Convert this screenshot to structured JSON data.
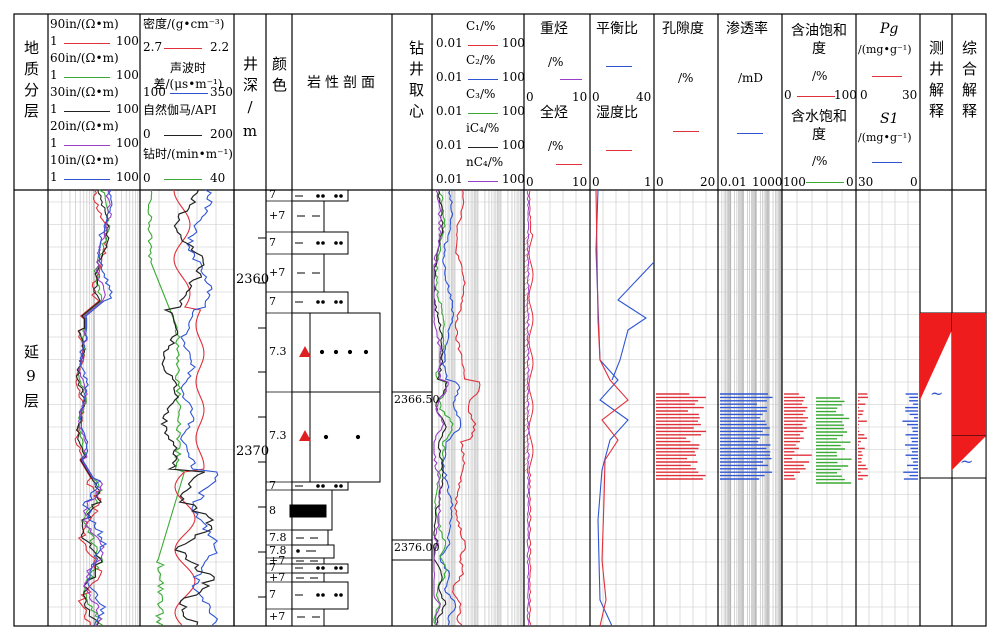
{
  "columns": {
    "geo": "地质分层",
    "depth": "井深/m",
    "color": "颜色",
    "lith": "岩性剖面",
    "core": "钻井取心",
    "heavy": "重烃",
    "balance": "平衡比",
    "porosity": "孔隙度",
    "perm": "渗透率",
    "oilsat": "含油饱和度",
    "watsat": "含水饱和度",
    "logint": "测井解释",
    "compint": "综合解释"
  },
  "resistivity_tracks": [
    {
      "name": "90in/(Ω•m)",
      "min": "1",
      "max": "100",
      "color": "#e0303a"
    },
    {
      "name": "60in/(Ω•m)",
      "min": "1",
      "max": "100",
      "color": "#3aaa35"
    },
    {
      "name": "30in/(Ω•m)",
      "min": "1",
      "max": "100",
      "color": "#222222"
    },
    {
      "name": "20in/(Ω•m)",
      "min": "1",
      "max": "100",
      "color": "#9b3fc9"
    },
    {
      "name": "10in/(Ω•m)",
      "min": "1",
      "max": "100",
      "color": "#2f55d4"
    }
  ],
  "acoustic_tracks": [
    {
      "name": "密度/(g•cm⁻³)",
      "min": "2.7",
      "max": "2.2",
      "color": "#e0303a"
    },
    {
      "name": "声波时差/(μs•m⁻¹)",
      "min": "100",
      "max": "350",
      "color": "#2f55d4"
    },
    {
      "name": "自然伽马/API",
      "min": "0",
      "max": "200",
      "color": "#222222"
    },
    {
      "name": "钻时/(min•m⁻¹)",
      "min": "0",
      "max": "40",
      "color": "#3aaa35"
    }
  ],
  "gas_tracks": [
    {
      "name": "C₁/%",
      "min": "0.01",
      "max": "100",
      "color": "#e0303a"
    },
    {
      "name": "C₂/%",
      "min": "0.01",
      "max": "100",
      "color": "#2f55d4"
    },
    {
      "name": "C₃/%",
      "min": "0.01",
      "max": "100",
      "color": "#3aaa35"
    },
    {
      "name": "iC₄/%",
      "min": "0.01",
      "max": "100",
      "color": "#222222"
    },
    {
      "name": "nC₄/%",
      "min": "0.01",
      "max": "100",
      "color": "#9b3fc9"
    }
  ],
  "heavy_tracks": [
    {
      "name": "重烃",
      "unit": "/%",
      "min": "0",
      "max": "10",
      "color": "#9b3fc9"
    },
    {
      "name": "全烃",
      "unit": "/%",
      "min": "0",
      "max": "10",
      "color": "#e0303a"
    }
  ],
  "ratio_tracks": [
    {
      "name": "平衡比",
      "min": "0",
      "max": "40",
      "color": "#2f55d4"
    },
    {
      "name": "湿度比",
      "min": "0",
      "max": "1",
      "color": "#e0303a"
    }
  ],
  "porosity_track": {
    "name": "孔隙度",
    "unit": "/%",
    "min": "0",
    "max": "20",
    "color": "#e0303a"
  },
  "perm_track": {
    "name": "渗透率",
    "unit": "/mD",
    "min": "0.01",
    "max": "1000",
    "color": "#2f55d4"
  },
  "oil_sat_track": {
    "name": "含油饱和度",
    "unit": "/%",
    "min": "0",
    "max": "100",
    "color": "#e0303a"
  },
  "water_sat_track": {
    "name": "含水饱和度",
    "unit": "/%",
    "min": "100",
    "max": "0",
    "color": "#3aaa35"
  },
  "pg_track": {
    "name": "Pg",
    "unit": "/(mg•g⁻¹)",
    "min": "0",
    "max": "30",
    "color": "#e0303a"
  },
  "s1_track": {
    "name": "S1",
    "unit": "/(mg•g⁻¹)",
    "min": "30",
    "max": "0",
    "color": "#2f55d4"
  },
  "formation": "延9层",
  "depth_ticks": [
    "2360",
    "2370"
  ],
  "core_depths": [
    "2366.50",
    "2376.00"
  ],
  "color_codes": [
    "7",
    "+7",
    "7",
    "+7",
    "7",
    "7.3",
    "7.3",
    "7",
    "8",
    "7.8",
    "7.8",
    "+7",
    "7",
    "+7",
    "7",
    "+7"
  ],
  "interp_symbol": "~"
}
